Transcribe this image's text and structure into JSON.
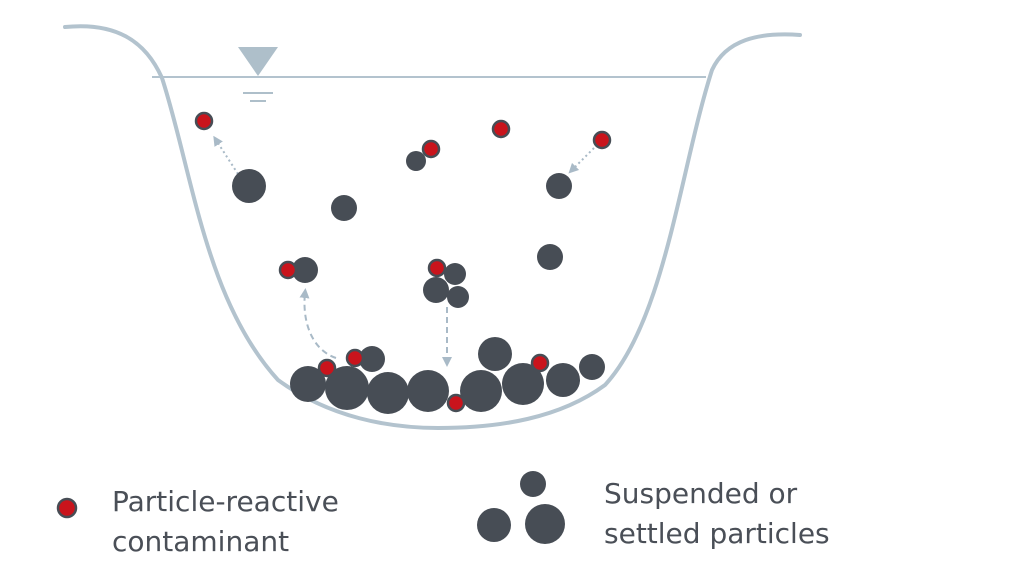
{
  "colors": {
    "particle_fill": "#474d55",
    "contaminant_fill": "#c9141c",
    "contaminant_stroke": "#474d55",
    "basin_outline": "#b3c3ce",
    "water_line": "#b3c3ce",
    "water_level_symbol": "#aebfca",
    "arrow": "#a9bac7",
    "legend_text": "#4a4f57"
  },
  "legend": {
    "contaminant": {
      "line1": "Particle-reactive",
      "line2": "contaminant"
    },
    "particles": {
      "line1": "Suspended or",
      "line2": "settled particles"
    }
  }
}
